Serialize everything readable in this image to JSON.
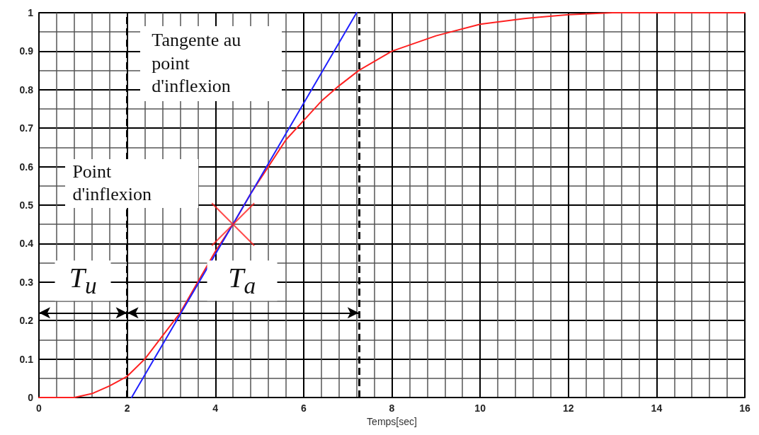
{
  "chart_data": {
    "type": "line",
    "xlabel": "Temps[sec]",
    "xlim": [
      0,
      16
    ],
    "xticks": [
      0,
      2,
      4,
      6,
      8,
      10,
      12,
      14,
      16
    ],
    "ylim": [
      0,
      1
    ],
    "yticks": [
      0,
      0.1,
      0.2,
      0.3,
      0.4,
      0.5,
      0.6,
      0.7,
      0.8,
      0.9,
      1
    ],
    "grid": true,
    "marker": "none",
    "line_style": "solid",
    "series": [
      {
        "color": "#ff2020",
        "x": [
          0,
          0.8,
          1.2,
          1.6,
          2,
          2.4,
          2.8,
          3.2,
          3.6,
          4,
          4.4,
          4.8,
          5.2,
          5.6,
          6,
          6.4,
          6.8,
          7.25,
          8,
          9,
          10,
          11,
          12,
          13,
          14,
          16
        ],
        "values": [
          0,
          0,
          0.01,
          0.03,
          0.055,
          0.1,
          0.16,
          0.22,
          0.3,
          0.38,
          0.45,
          0.53,
          0.6,
          0.67,
          0.72,
          0.77,
          0.81,
          0.85,
          0.9,
          0.94,
          0.97,
          0.985,
          0.995,
          1,
          1,
          1
        ]
      },
      {
        "color": "#2020ff",
        "x": [
          2.1,
          7.2
        ],
        "values": [
          0,
          1
        ]
      },
      {
        "type": "scatter",
        "marker": "cross",
        "color": "#ff2020",
        "x": [
          4.4
        ],
        "values": [
          0.45
        ]
      }
    ],
    "ref_lines": [
      {
        "axis": "x",
        "value": 2,
        "line_style": "dashed",
        "color": "#000000"
      },
      {
        "axis": "x",
        "value": 7.25,
        "line_style": "dashed",
        "color": "#000000"
      }
    ],
    "annotations": [
      "Tangente au point d'inflexion",
      "Point d'inflexion",
      "T$_{u}$",
      "T$_{a}$"
    ]
  }
}
